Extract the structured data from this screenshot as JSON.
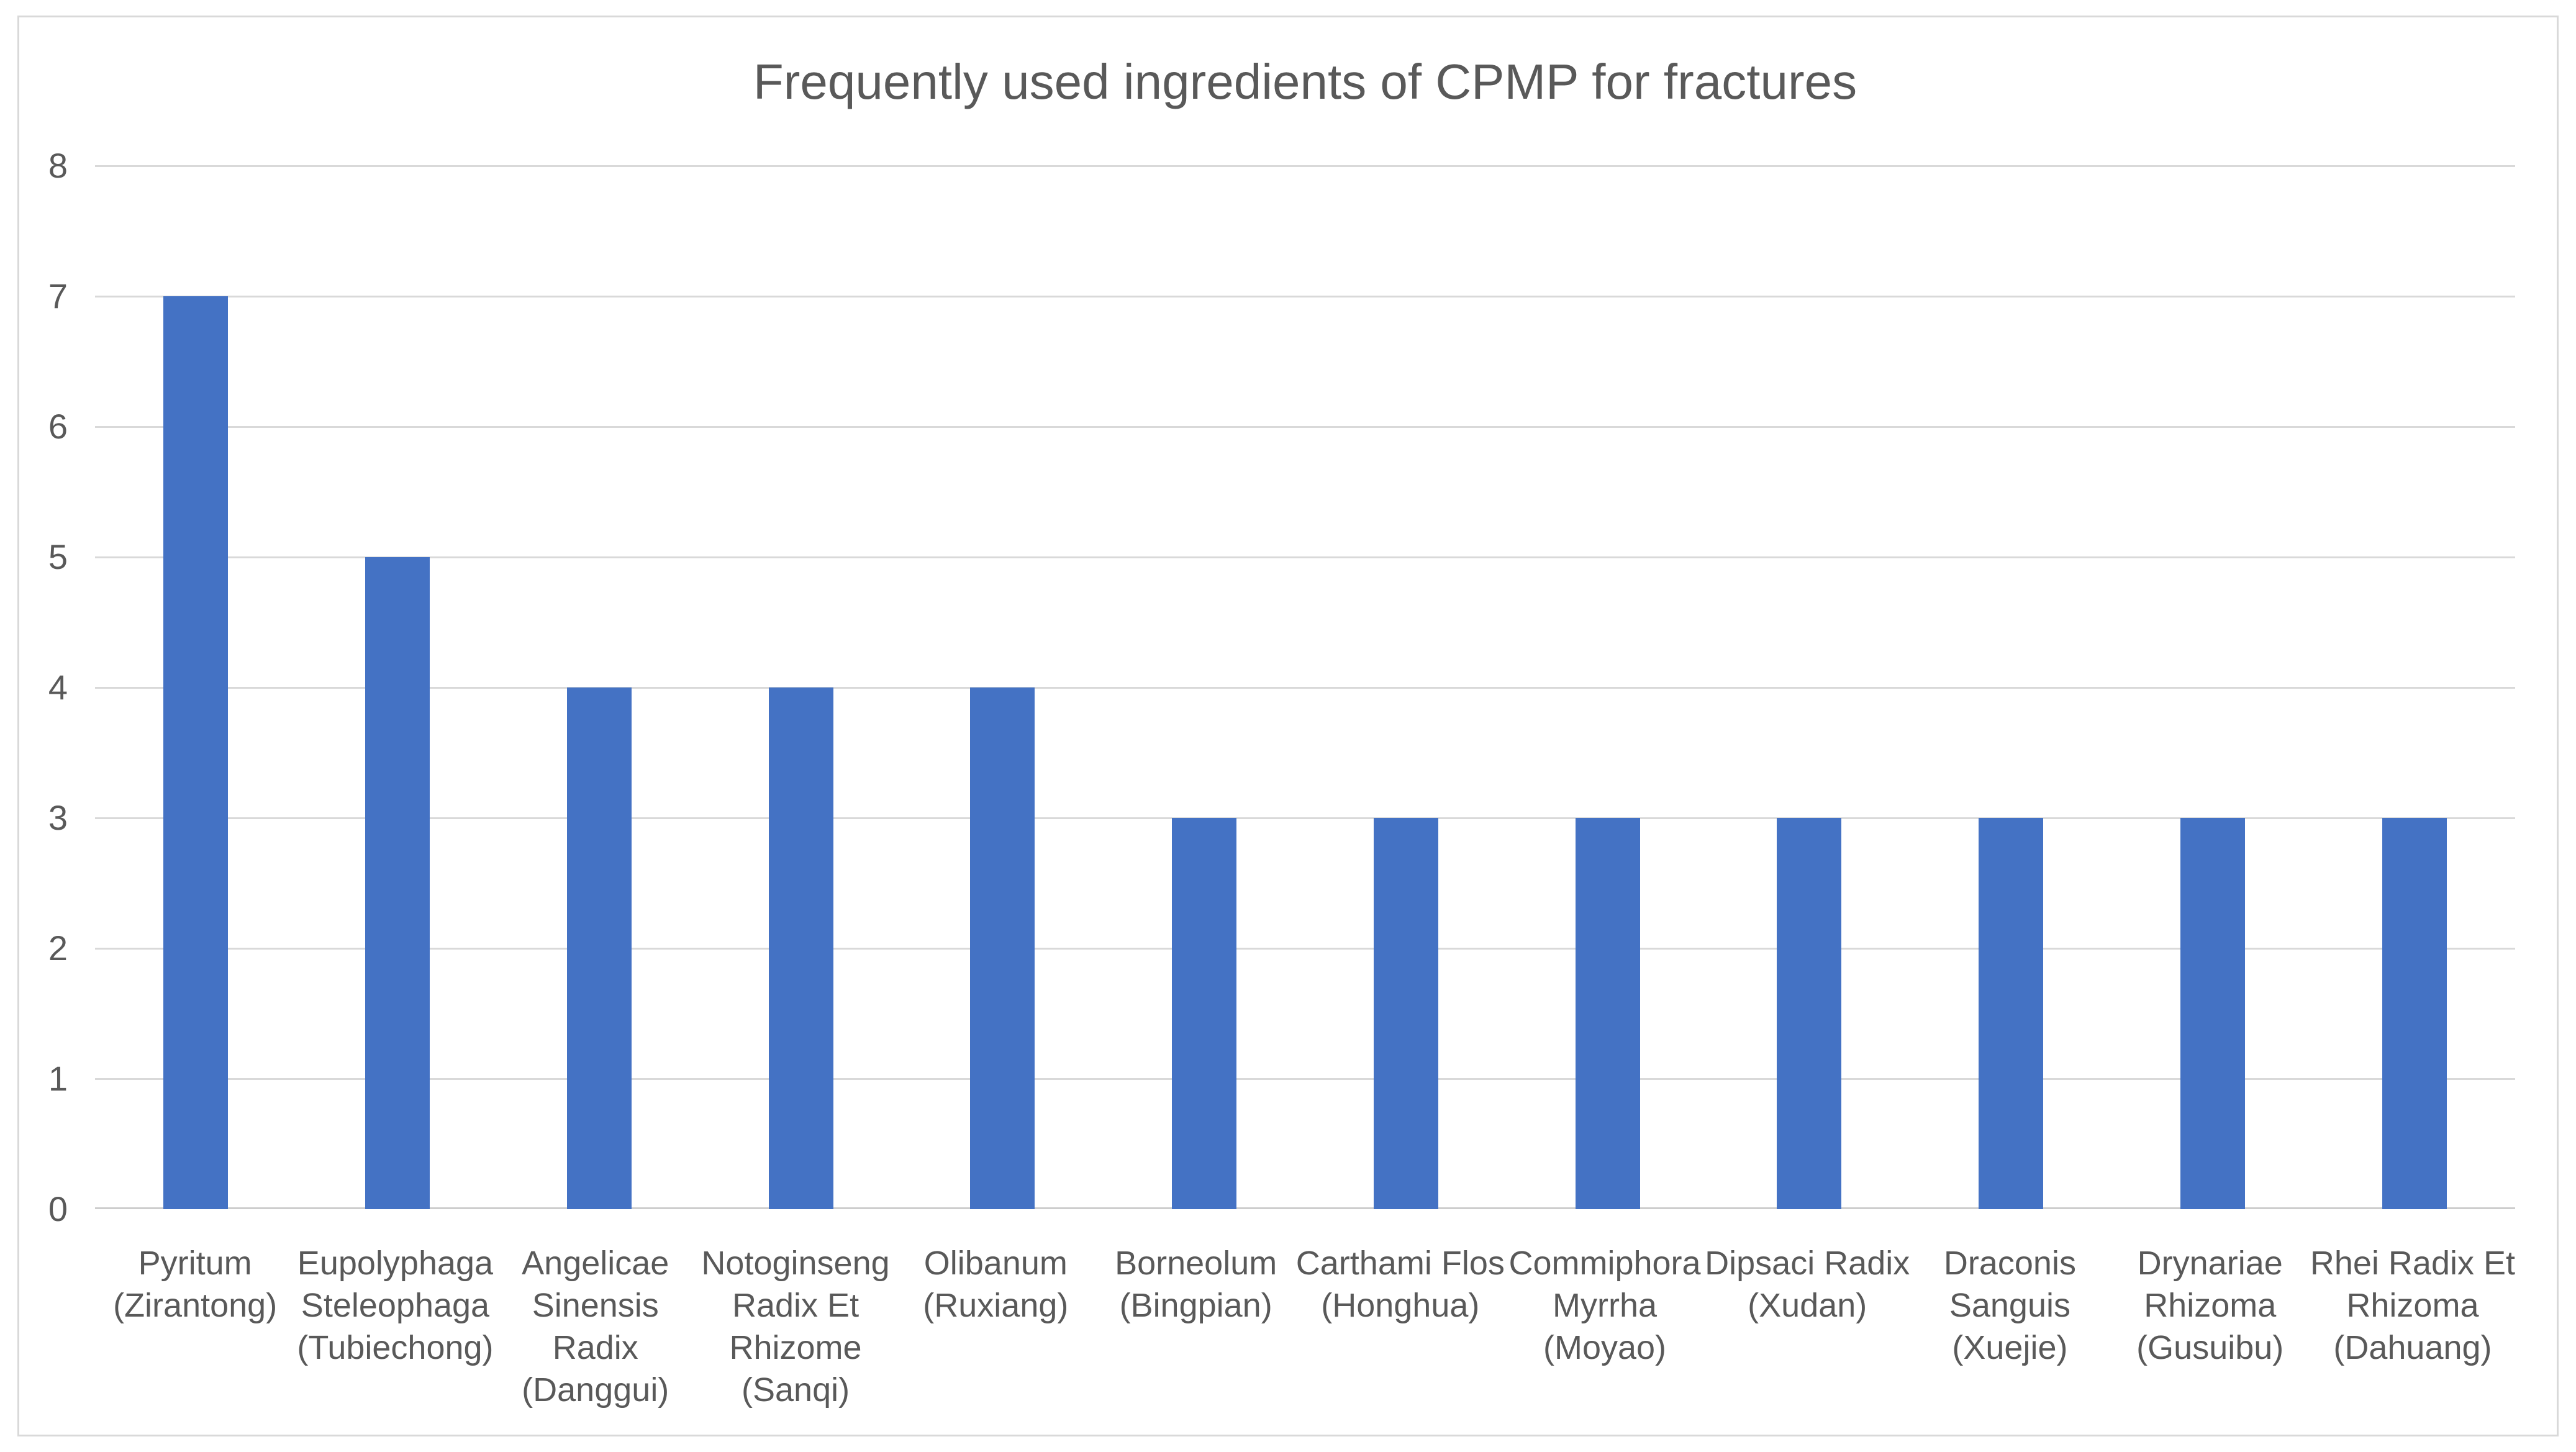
{
  "chart_data": {
    "type": "bar",
    "title": "Frequently used ingredients of CPMP for fractures",
    "categories": [
      "Pyritum (Zirantong)",
      "Eupolyphaga Steleophaga (Tubiechong)",
      "Angelicae Sinensis Radix (Danggui)",
      "Notoginseng Radix Et Rhizome (Sanqi)",
      "Olibanum (Ruxiang)",
      "Borneolum (Bingpian)",
      "Carthami Flos (Honghua)",
      "Commiphora Myrrha (Moyao)",
      "Dipsaci Radix (Xudan)",
      "Draconis Sanguis (Xuejie)",
      "Drynariae Rhizoma (Gusuibu)",
      "Rhei Radix Et Rhizoma (Dahuang)"
    ],
    "category_label_lines": [
      [
        "Pyritum",
        "(Zirantong)"
      ],
      [
        "Eupolyphaga",
        "Steleophaga",
        "(Tubiechong)"
      ],
      [
        "Angelicae",
        "Sinensis",
        "Radix",
        "(Danggui)"
      ],
      [
        "Notoginseng",
        "Radix Et",
        "Rhizome",
        "(Sanqi)"
      ],
      [
        "Olibanum",
        "(Ruxiang)"
      ],
      [
        "Borneolum",
        "(Bingpian)"
      ],
      [
        "Carthami Flos",
        "(Honghua)"
      ],
      [
        "Commiphora",
        "Myrrha",
        "(Moyao)"
      ],
      [
        "Dipsaci Radix",
        "(Xudan)"
      ],
      [
        "Draconis",
        "Sanguis",
        "(Xuejie)"
      ],
      [
        "Drynariae",
        "Rhizoma",
        "(Gusuibu)"
      ],
      [
        "Rhei Radix Et",
        "Rhizoma",
        "(Dahuang)"
      ]
    ],
    "values": [
      7,
      5,
      4,
      4,
      4,
      3,
      3,
      3,
      3,
      3,
      3,
      3
    ],
    "xlabel": "",
    "ylabel": "",
    "ylim": [
      0,
      8
    ],
    "yticks": [
      0,
      1,
      2,
      3,
      4,
      5,
      6,
      7,
      8
    ],
    "grid": "horizontal",
    "legend_position": "none",
    "colors": {
      "bar": "#4472C4",
      "gridline": "#D9D9D9",
      "axis_line": "#CDCDCD",
      "title_text": "#595959",
      "axis_text": "#595959",
      "frame_border": "#D9D9D9",
      "background": "#FFFFFF"
    }
  }
}
